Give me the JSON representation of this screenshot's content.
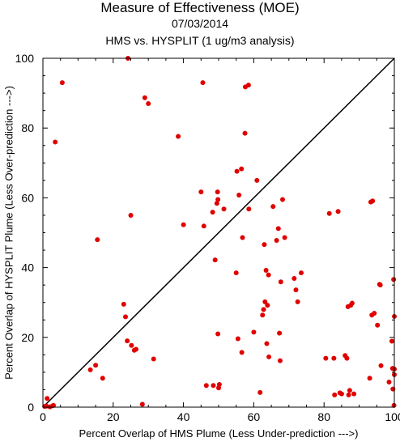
{
  "chart_data": {
    "type": "scatter",
    "title": "Measure of Effectiveness (MOE)",
    "subtitle": "07/03/2014",
    "subtitle2": "HMS vs. HYSPLIT  (1 ug/m3 analysis)",
    "xlabel": "Percent Overlap of HMS Plume (Less Under-prediction --->)",
    "ylabel": "Percent Overlap of HYSPLIT Plume (Less Over-prediction --->)",
    "xlim": [
      0,
      100
    ],
    "ylim": [
      0,
      100
    ],
    "xticks": [
      0,
      20,
      40,
      60,
      80,
      100
    ],
    "yticks": [
      0,
      20,
      40,
      60,
      80,
      100
    ],
    "grid": false,
    "reference_line": {
      "from": [
        0,
        0
      ],
      "to": [
        100,
        100
      ],
      "color": "#000000"
    },
    "marker_color": "#e00000",
    "points": [
      [
        0.5,
        0.2
      ],
      [
        1,
        0.3
      ],
      [
        1.2,
        2.5
      ],
      [
        2,
        0.1
      ],
      [
        2.8,
        0.4
      ],
      [
        3,
        0.5
      ],
      [
        3.5,
        76
      ],
      [
        5.5,
        93
      ],
      [
        13.5,
        10.7
      ],
      [
        15,
        12
      ],
      [
        15.5,
        48
      ],
      [
        17,
        8.3
      ],
      [
        23,
        29.5
      ],
      [
        23.5,
        25.9
      ],
      [
        24,
        19
      ],
      [
        24.2,
        100
      ],
      [
        25,
        55
      ],
      [
        25.2,
        17.7
      ],
      [
        26,
        16.3
      ],
      [
        26.5,
        16.6
      ],
      [
        28.3,
        0.8
      ],
      [
        29,
        88.7
      ],
      [
        30,
        87
      ],
      [
        31.5,
        13.8
      ],
      [
        38.5,
        77.6
      ],
      [
        40,
        52.3
      ],
      [
        45,
        61.7
      ],
      [
        45.5,
        93
      ],
      [
        45.8,
        51.9
      ],
      [
        46.5,
        6.2
      ],
      [
        48.3,
        55.9
      ],
      [
        48.5,
        6.2
      ],
      [
        49,
        42.2
      ],
      [
        49.5,
        58.4
      ],
      [
        49.7,
        61.7
      ],
      [
        49.8,
        59.5
      ],
      [
        49.8,
        21
      ],
      [
        50,
        5.5
      ],
      [
        50.2,
        6.5
      ],
      [
        51.5,
        56.8
      ],
      [
        55,
        38.5
      ],
      [
        55.2,
        67.6
      ],
      [
        55.5,
        19.6
      ],
      [
        55.8,
        60.8
      ],
      [
        56.5,
        68.3
      ],
      [
        56.6,
        15.7
      ],
      [
        56.8,
        48.6
      ],
      [
        57.5,
        78.5
      ],
      [
        57.6,
        91.8
      ],
      [
        58.5,
        92.3
      ],
      [
        58.6,
        56.8
      ],
      [
        60,
        21.5
      ],
      [
        60.9,
        65
      ],
      [
        61.8,
        4.2
      ],
      [
        62.5,
        26.4
      ],
      [
        62.8,
        28
      ],
      [
        63,
        46.6
      ],
      [
        63.2,
        30.2
      ],
      [
        63.5,
        39.2
      ],
      [
        63.7,
        18.2
      ],
      [
        63.9,
        29.2
      ],
      [
        64.2,
        37.9
      ],
      [
        64.3,
        14.4
      ],
      [
        65.5,
        57.5
      ],
      [
        66.5,
        47.8
      ],
      [
        67,
        51.2
      ],
      [
        67.3,
        21.2
      ],
      [
        67.5,
        13.3
      ],
      [
        67.7,
        35.9
      ],
      [
        68.2,
        59.5
      ],
      [
        68.8,
        48.6
      ],
      [
        71.5,
        36.9
      ],
      [
        72,
        33.6
      ],
      [
        72.5,
        30.2
      ],
      [
        73.5,
        38.5
      ],
      [
        80.5,
        14
      ],
      [
        81.5,
        55.5
      ],
      [
        82.8,
        14
      ],
      [
        83,
        3.5
      ],
      [
        84,
        56.1
      ],
      [
        84.5,
        4.1
      ],
      [
        85,
        3.8
      ],
      [
        86,
        14.8
      ],
      [
        86.5,
        14
      ],
      [
        86.8,
        28.8
      ],
      [
        87,
        3.5
      ],
      [
        87.3,
        4.8
      ],
      [
        87.6,
        29.2
      ],
      [
        88,
        29.8
      ],
      [
        88.5,
        3.8
      ],
      [
        93,
        8.3
      ],
      [
        93.3,
        58.8
      ],
      [
        93.6,
        26.4
      ],
      [
        93.8,
        59.1
      ],
      [
        94.3,
        26.9
      ],
      [
        95.2,
        23.5
      ],
      [
        95.8,
        35.2
      ],
      [
        96,
        35
      ],
      [
        96.2,
        11.9
      ],
      [
        98.5,
        7.2
      ],
      [
        99.3,
        18.9
      ],
      [
        99.5,
        11.1
      ],
      [
        99.6,
        5.2
      ],
      [
        99.8,
        36.6
      ],
      [
        99.9,
        0.5
      ],
      [
        100,
        10.9
      ],
      [
        100,
        9.3
      ],
      [
        100,
        26
      ]
    ]
  }
}
